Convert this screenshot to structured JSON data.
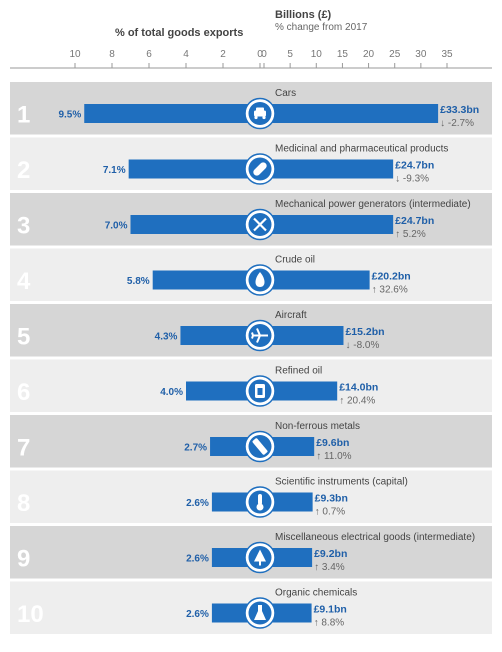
{
  "header": {
    "left_title": "% of total goods exports",
    "right_title": "Billions (£)",
    "right_subtitle": "% change from 2017"
  },
  "colors": {
    "bar": "#1f6fbf",
    "row_dark": "#d6d6d6",
    "row_light": "#eeeeee",
    "text_blue": "#1f5fa8",
    "rank_text": "#ffffff"
  },
  "chart_data": {
    "type": "bar",
    "left_axis": {
      "label": "% of total goods exports",
      "ticks": [
        10,
        8,
        6,
        4,
        2,
        0
      ],
      "range": [
        10,
        0
      ]
    },
    "right_axis": {
      "label": "Billions (£)",
      "ticks": [
        0,
        5,
        10,
        15,
        20,
        25,
        30,
        35
      ],
      "range": [
        0,
        35
      ]
    },
    "rows": [
      {
        "rank": "1",
        "category": "Cars",
        "share": 9.5,
        "share_label": "9.5%",
        "value": 33.3,
        "value_label": "£33.3bn",
        "change": -2.7,
        "change_label": "↓ -2.7%",
        "icon": "car-icon"
      },
      {
        "rank": "2",
        "category": "Medicinal and pharmaceutical products",
        "share": 7.1,
        "share_label": "7.1%",
        "value": 24.7,
        "value_label": "£24.7bn",
        "change": -9.3,
        "change_label": "↓ -9.3%",
        "icon": "pill-icon"
      },
      {
        "rank": "3",
        "category": "Mechanical power generators (intermediate)",
        "share": 7.0,
        "share_label": "7.0%",
        "value": 24.7,
        "value_label": "£24.7bn",
        "change": 5.2,
        "change_label": "↑ 5.2%",
        "icon": "tools-icon"
      },
      {
        "rank": "4",
        "category": "Crude oil",
        "share": 5.8,
        "share_label": "5.8%",
        "value": 20.2,
        "value_label": "£20.2bn",
        "change": 32.6,
        "change_label": "↑ 32.6%",
        "icon": "oil-drop-icon"
      },
      {
        "rank": "5",
        "category": "Aircraft",
        "share": 4.3,
        "share_label": "4.3%",
        "value": 15.2,
        "value_label": "£15.2bn",
        "change": -8.0,
        "change_label": "↓ -8.0%",
        "icon": "aircraft-icon"
      },
      {
        "rank": "6",
        "category": "Refined oil",
        "share": 4.0,
        "share_label": "4.0%",
        "value": 14.0,
        "value_label": "£14.0bn",
        "change": 20.4,
        "change_label": "↑ 20.4%",
        "icon": "fuel-can-icon"
      },
      {
        "rank": "7",
        "category": "Non-ferrous metals",
        "share": 2.7,
        "share_label": "2.7%",
        "value": 9.6,
        "value_label": "£9.6bn",
        "change": 11.0,
        "change_label": "↑ 11.0%",
        "icon": "metal-bar-icon"
      },
      {
        "rank": "8",
        "category": "Scientific instruments (capital)",
        "share": 2.6,
        "share_label": "2.6%",
        "value": 9.3,
        "value_label": "£9.3bn",
        "change": 0.7,
        "change_label": "↑ 0.7%",
        "icon": "thermometer-icon"
      },
      {
        "rank": "9",
        "category": "Miscellaneous electrical goods (intermediate)",
        "share": 2.6,
        "share_label": "2.6%",
        "value": 9.2,
        "value_label": "£9.2bn",
        "change": 3.4,
        "change_label": "↑ 3.4%",
        "icon": "circuit-tree-icon"
      },
      {
        "rank": "10",
        "category": "Organic chemicals",
        "share": 2.6,
        "share_label": "2.6%",
        "value": 9.1,
        "value_label": "£9.1bn",
        "change": 8.8,
        "change_label": "↑ 8.8%",
        "icon": "flask-icon"
      }
    ]
  }
}
